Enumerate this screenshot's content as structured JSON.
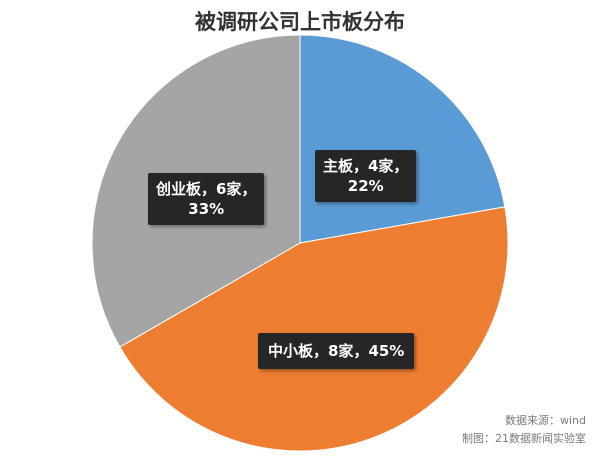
{
  "chart_data": {
    "type": "pie",
    "title": "被调研公司上市板分布",
    "categories": [
      "主板",
      "中小板",
      "创业板"
    ],
    "values": [
      4,
      8,
      6
    ],
    "percent": [
      22,
      45,
      33
    ],
    "unit": "家",
    "colors": [
      "#5b9bd5",
      "#ed7d31",
      "#a5a5a5"
    ],
    "data_labels": [
      {
        "line1": "主板，4家，",
        "line2": "22%"
      },
      {
        "line1": "中小板，8家，45%",
        "line2": ""
      },
      {
        "line1": "创业板，6家，",
        "line2": "33%"
      }
    ]
  },
  "footer": {
    "source": "数据来源：wind",
    "made_by": "制图：21数据新闻实验室"
  }
}
